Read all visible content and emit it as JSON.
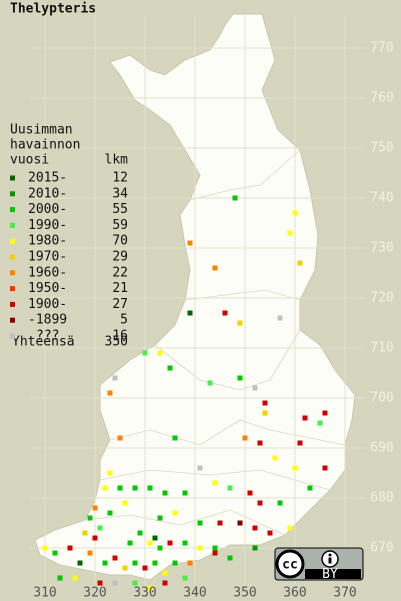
{
  "title": "Thelypteris",
  "legend": {
    "heading": [
      "Uusimman",
      "havainnon",
      "vuosi"
    ],
    "count_heading": "lkm",
    "rows": [
      {
        "label": "2015-",
        "count": 12,
        "color": "#006400"
      },
      {
        "label": "2010-",
        "count": 34,
        "color": "#009a00"
      },
      {
        "label": "2000-",
        "count": 55,
        "color": "#00c800"
      },
      {
        "label": "1990-",
        "count": 59,
        "color": "#44f044"
      },
      {
        "label": "1980-",
        "count": 70,
        "color": "#ffff00"
      },
      {
        "label": "1970-",
        "count": 29,
        "color": "#f0d000"
      },
      {
        "label": "1960-",
        "count": 22,
        "color": "#ff8000"
      },
      {
        "label": "1950-",
        "count": 21,
        "color": "#ff3000"
      },
      {
        "label": "1900-",
        "count": 27,
        "color": "#d00000"
      },
      {
        "label": "-1899",
        "count": 5,
        "color": "#800000"
      },
      {
        "label": "???",
        "count": 16,
        "color": "#c0c0c0"
      }
    ],
    "total": {
      "label": "Yhteensä",
      "count": 350
    }
  },
  "axes": {
    "x_ticks": [
      310,
      320,
      330,
      340,
      350,
      360,
      370
    ],
    "y_ticks": [
      670,
      680,
      690,
      700,
      710,
      720,
      730,
      740,
      750,
      760,
      770
    ]
  },
  "license": {
    "cc": "cc",
    "by": "BY"
  },
  "points": [
    [
      348,
      740,
      2
    ],
    [
      360,
      737,
      4
    ],
    [
      339,
      731,
      6
    ],
    [
      359,
      733,
      4
    ],
    [
      344,
      726,
      6
    ],
    [
      361,
      727,
      5
    ],
    [
      339,
      717,
      0
    ],
    [
      346,
      717,
      8
    ],
    [
      349,
      715,
      5
    ],
    [
      357,
      716,
      10
    ],
    [
      330,
      709,
      3
    ],
    [
      333,
      709,
      4
    ],
    [
      324,
      704,
      10
    ],
    [
      323,
      701,
      6
    ],
    [
      335,
      706,
      2
    ],
    [
      343,
      703,
      3
    ],
    [
      349,
      704,
      2
    ],
    [
      352,
      702,
      10
    ],
    [
      354,
      699,
      8
    ],
    [
      354,
      697,
      5
    ],
    [
      366,
      697,
      8
    ],
    [
      362,
      696,
      8
    ],
    [
      365,
      695,
      3
    ],
    [
      325,
      692,
      6
    ],
    [
      336,
      692,
      2
    ],
    [
      350,
      692,
      6
    ],
    [
      353,
      691,
      8
    ],
    [
      361,
      691,
      8
    ],
    [
      356,
      688,
      4
    ],
    [
      366,
      686,
      8
    ],
    [
      363,
      682,
      2
    ],
    [
      360,
      686,
      4
    ],
    [
      341,
      686,
      10
    ],
    [
      323,
      685,
      4
    ],
    [
      322,
      682,
      4
    ],
    [
      325,
      682,
      2
    ],
    [
      328,
      682,
      2
    ],
    [
      331,
      682,
      2
    ],
    [
      334,
      681,
      2
    ],
    [
      338,
      681,
      2
    ],
    [
      344,
      683,
      4
    ],
    [
      347,
      682,
      3
    ],
    [
      351,
      681,
      8
    ],
    [
      353,
      679,
      8
    ],
    [
      357,
      679,
      2
    ],
    [
      320,
      678,
      6
    ],
    [
      323,
      677,
      2
    ],
    [
      326,
      679,
      4
    ],
    [
      333,
      676,
      2
    ],
    [
      336,
      677,
      4
    ],
    [
      341,
      675,
      2
    ],
    [
      345,
      675,
      8
    ],
    [
      349,
      675,
      9
    ],
    [
      352,
      674,
      8
    ],
    [
      355,
      673,
      8
    ],
    [
      359,
      674,
      4
    ],
    [
      318,
      673,
      5
    ],
    [
      320,
      672,
      8
    ],
    [
      321,
      674,
      3
    ],
    [
      329,
      673,
      2
    ],
    [
      332,
      672,
      0
    ],
    [
      335,
      671,
      8
    ],
    [
      338,
      671,
      2
    ],
    [
      341,
      670,
      4
    ],
    [
      344,
      669,
      8
    ],
    [
      347,
      668,
      2
    ],
    [
      352,
      670,
      1
    ],
    [
      310,
      670,
      4
    ],
    [
      312,
      669,
      2
    ],
    [
      315,
      670,
      8
    ],
    [
      317,
      667,
      0
    ],
    [
      319,
      669,
      6
    ],
    [
      322,
      667,
      2
    ],
    [
      324,
      668,
      8
    ],
    [
      326,
      666,
      5
    ],
    [
      328,
      667,
      2
    ],
    [
      330,
      666,
      8
    ],
    [
      332,
      667,
      2
    ],
    [
      334,
      665,
      4
    ],
    [
      336,
      667,
      2
    ],
    [
      338,
      664,
      3
    ],
    [
      313,
      664,
      2
    ],
    [
      316,
      664,
      4
    ],
    [
      321,
      663,
      8
    ],
    [
      324,
      663,
      10
    ],
    [
      328,
      663,
      3
    ],
    [
      331,
      662,
      4
    ],
    [
      334,
      663,
      8
    ],
    [
      339,
      667,
      6
    ],
    [
      344,
      670,
      2
    ],
    [
      319,
      676,
      2
    ],
    [
      327,
      671,
      2
    ],
    [
      331,
      671,
      4
    ],
    [
      333,
      670,
      2
    ]
  ]
}
